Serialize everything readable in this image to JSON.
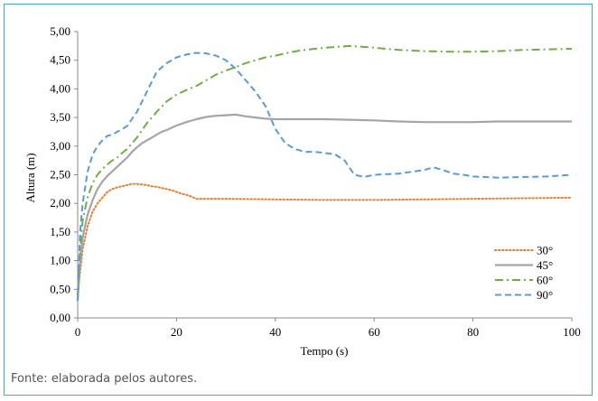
{
  "caption": "Fonte: elaborada pelos autores.",
  "chart_data": {
    "type": "line",
    "title": "",
    "xlabel": "Tempo (s)",
    "ylabel": "Altura (m)",
    "xlim": [
      0,
      100
    ],
    "ylim": [
      0,
      5
    ],
    "x_ticks": [
      "0",
      "20",
      "40",
      "60",
      "80",
      "100"
    ],
    "y_ticks": [
      "0,00",
      "0,50",
      "1,00",
      "1,50",
      "2,00",
      "2,50",
      "3,00",
      "3,50",
      "4,00",
      "4,50",
      "5,00"
    ],
    "grid": false,
    "legend_position": "bottom-right",
    "series": [
      {
        "name": "30°",
        "color": "#ed7d31",
        "style": "dotted",
        "x": [
          0,
          0.5,
          1,
          2,
          3,
          4,
          5,
          6,
          7,
          8,
          9,
          10,
          11,
          12,
          13,
          14,
          15,
          16,
          17,
          18,
          19,
          20,
          21,
          22,
          23,
          24,
          25,
          30,
          40,
          50,
          60,
          70,
          80,
          90,
          100
        ],
        "y": [
          0.4,
          0.8,
          1.2,
          1.6,
          1.85,
          2.0,
          2.1,
          2.2,
          2.25,
          2.28,
          2.3,
          2.32,
          2.34,
          2.34,
          2.33,
          2.32,
          2.3,
          2.29,
          2.27,
          2.25,
          2.23,
          2.2,
          2.17,
          2.15,
          2.12,
          2.08,
          2.08,
          2.08,
          2.07,
          2.06,
          2.06,
          2.07,
          2.08,
          2.09,
          2.1
        ]
      },
      {
        "name": "45°",
        "color": "#a5a5a5",
        "style": "solid",
        "x": [
          0,
          0.5,
          1,
          2,
          3,
          4,
          5,
          6,
          7,
          8,
          9,
          10,
          11,
          12,
          13,
          14,
          15,
          16,
          17,
          18,
          19,
          20,
          22,
          24,
          26,
          28,
          30,
          32,
          34,
          36,
          38,
          40,
          45,
          50,
          55,
          60,
          65,
          70,
          75,
          80,
          85,
          90,
          95,
          100
        ],
        "y": [
          0.3,
          1.0,
          1.4,
          1.8,
          2.05,
          2.25,
          2.38,
          2.48,
          2.56,
          2.64,
          2.72,
          2.8,
          2.9,
          2.98,
          3.05,
          3.1,
          3.15,
          3.2,
          3.25,
          3.28,
          3.32,
          3.36,
          3.42,
          3.47,
          3.51,
          3.53,
          3.54,
          3.55,
          3.52,
          3.5,
          3.48,
          3.47,
          3.47,
          3.47,
          3.46,
          3.45,
          3.43,
          3.42,
          3.42,
          3.42,
          3.43,
          3.43,
          3.43,
          3.43
        ]
      },
      {
        "name": "60°",
        "color": "#70ad47",
        "style": "dash-dot",
        "x": [
          0,
          0.5,
          1,
          2,
          3,
          4,
          5,
          6,
          7,
          8,
          9,
          10,
          12,
          14,
          16,
          18,
          20,
          22,
          24,
          26,
          28,
          30,
          32,
          34,
          36,
          38,
          40,
          42,
          45,
          50,
          55,
          57,
          60,
          65,
          70,
          75,
          80,
          85,
          90,
          95,
          100
        ],
        "y": [
          0.4,
          1.2,
          1.7,
          2.1,
          2.35,
          2.5,
          2.6,
          2.68,
          2.75,
          2.8,
          2.88,
          2.95,
          3.15,
          3.4,
          3.6,
          3.78,
          3.9,
          3.98,
          4.05,
          4.15,
          4.25,
          4.32,
          4.38,
          4.45,
          4.5,
          4.55,
          4.58,
          4.62,
          4.67,
          4.72,
          4.75,
          4.74,
          4.72,
          4.68,
          4.66,
          4.65,
          4.65,
          4.66,
          4.68,
          4.69,
          4.7
        ]
      },
      {
        "name": "90°",
        "color": "#5b9bd5",
        "style": "dashed",
        "x": [
          0,
          0.5,
          1,
          2,
          3,
          4,
          5,
          6,
          7,
          8,
          9,
          10,
          12,
          14,
          16,
          18,
          20,
          22,
          24,
          26,
          28,
          30,
          32,
          34,
          36,
          38,
          40,
          42,
          44,
          46,
          48,
          50,
          52,
          54,
          56,
          58,
          60,
          65,
          70,
          72,
          74,
          76,
          78,
          80,
          85,
          90,
          95,
          100
        ],
        "y": [
          0.3,
          1.5,
          2.0,
          2.55,
          2.85,
          3.0,
          3.1,
          3.18,
          3.2,
          3.25,
          3.3,
          3.35,
          3.6,
          3.95,
          4.3,
          4.45,
          4.55,
          4.6,
          4.63,
          4.62,
          4.58,
          4.5,
          4.35,
          4.15,
          3.95,
          3.7,
          3.3,
          3.05,
          2.95,
          2.9,
          2.9,
          2.88,
          2.86,
          2.75,
          2.5,
          2.46,
          2.5,
          2.52,
          2.58,
          2.63,
          2.58,
          2.52,
          2.5,
          2.47,
          2.45,
          2.46,
          2.47,
          2.5
        ]
      }
    ]
  }
}
